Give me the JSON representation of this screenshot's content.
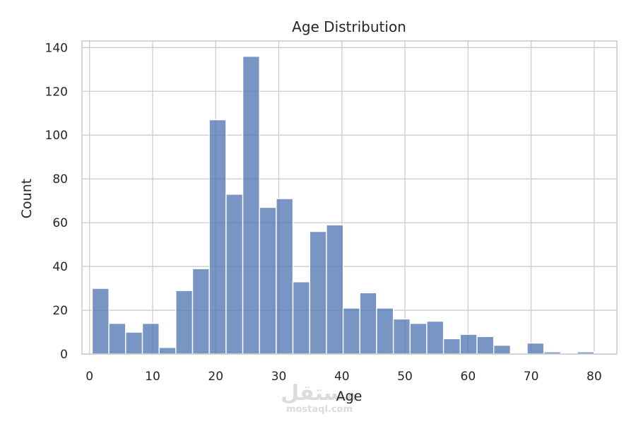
{
  "chart_data": {
    "type": "bar",
    "title": "Age Distribution",
    "xlabel": "Age",
    "ylabel": "Count",
    "xlim": [
      -1.2,
      83.6
    ],
    "ylim": [
      0,
      143
    ],
    "xticks": [
      0,
      10,
      20,
      30,
      40,
      50,
      60,
      70,
      80
    ],
    "yticks": [
      0,
      20,
      40,
      60,
      80,
      100,
      120,
      140
    ],
    "grid": true,
    "bar_color": "#4c72b0",
    "bin_start": 0.42,
    "bin_width": 2.652,
    "bins": [
      {
        "x0": 0.42,
        "x1": 3.07,
        "count": 30
      },
      {
        "x0": 3.07,
        "x1": 5.72,
        "count": 14
      },
      {
        "x0": 5.72,
        "x1": 8.38,
        "count": 10
      },
      {
        "x0": 8.38,
        "x1": 11.03,
        "count": 14
      },
      {
        "x0": 11.03,
        "x1": 13.68,
        "count": 3
      },
      {
        "x0": 13.68,
        "x1": 16.33,
        "count": 29
      },
      {
        "x0": 16.33,
        "x1": 18.98,
        "count": 39
      },
      {
        "x0": 18.98,
        "x1": 21.64,
        "count": 107
      },
      {
        "x0": 21.64,
        "x1": 24.29,
        "count": 73
      },
      {
        "x0": 24.29,
        "x1": 26.94,
        "count": 136
      },
      {
        "x0": 26.94,
        "x1": 29.59,
        "count": 67
      },
      {
        "x0": 29.59,
        "x1": 32.24,
        "count": 71
      },
      {
        "x0": 32.24,
        "x1": 34.9,
        "count": 33
      },
      {
        "x0": 34.9,
        "x1": 37.55,
        "count": 56
      },
      {
        "x0": 37.55,
        "x1": 40.2,
        "count": 59
      },
      {
        "x0": 40.2,
        "x1": 42.85,
        "count": 21
      },
      {
        "x0": 42.85,
        "x1": 45.5,
        "count": 28
      },
      {
        "x0": 45.5,
        "x1": 48.16,
        "count": 21
      },
      {
        "x0": 48.16,
        "x1": 50.81,
        "count": 16
      },
      {
        "x0": 50.81,
        "x1": 53.46,
        "count": 14
      },
      {
        "x0": 53.46,
        "x1": 56.11,
        "count": 15
      },
      {
        "x0": 56.11,
        "x1": 58.76,
        "count": 7
      },
      {
        "x0": 58.76,
        "x1": 61.42,
        "count": 9
      },
      {
        "x0": 61.42,
        "x1": 64.07,
        "count": 8
      },
      {
        "x0": 64.07,
        "x1": 66.72,
        "count": 4
      },
      {
        "x0": 66.72,
        "x1": 69.37,
        "count": 0
      },
      {
        "x0": 69.37,
        "x1": 72.02,
        "count": 5
      },
      {
        "x0": 72.02,
        "x1": 74.68,
        "count": 1
      },
      {
        "x0": 74.68,
        "x1": 77.33,
        "count": 0
      },
      {
        "x0": 77.33,
        "x1": 79.98,
        "count": 1
      }
    ]
  },
  "watermark": {
    "arabic": "مستقل",
    "latin": "mostaql.com"
  }
}
